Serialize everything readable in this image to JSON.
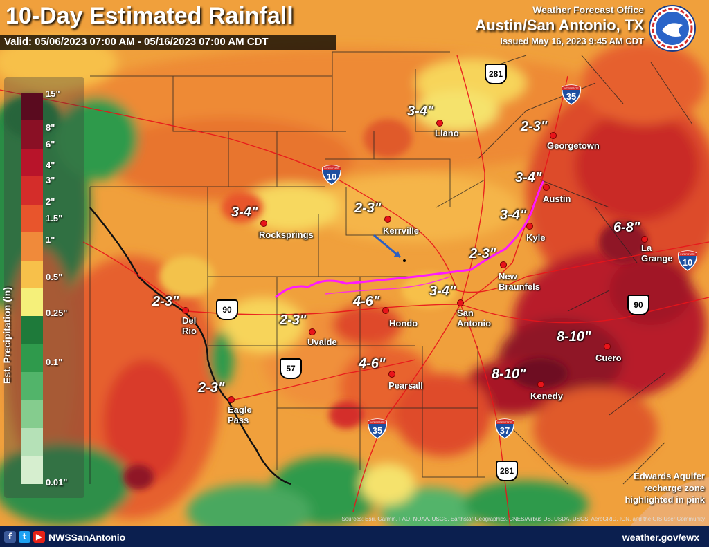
{
  "header": {
    "title": "10-Day Estimated Rainfall",
    "valid": "Valid: 05/06/2023 07:00 AM - 05/16/2023 07:00 AM CDT",
    "office_line1": "Weather Forecast Office",
    "office_line2": "Austin/San Antonio, TX",
    "issued": "Issued May 16, 2023 9:45 AM CDT",
    "logo_text": "NATIONAL WEATHER SERVICE"
  },
  "legend": {
    "title": "Est. Precipitation (in)",
    "labels": [
      "15\"",
      "8\"",
      "6\"",
      "4\"",
      "3\"",
      "2\"",
      "1.5\"",
      "1\"",
      "0.5\"",
      "0.25\"",
      "0.1\"",
      "0.01\""
    ],
    "colors": [
      "#5a0b1f",
      "#8a1025",
      "#b8142a",
      "#d42d2a",
      "#e8552c",
      "#f08a3a",
      "#f7c04a",
      "#f5f07a",
      "#1e7a3a",
      "#2f9a4c",
      "#52b46a",
      "#85cc8e",
      "#b5e1b7",
      "#d6eecf"
    ]
  },
  "rainfall_labels": [
    {
      "id": "llano",
      "text": "3-4\""
    },
    {
      "id": "georgetown",
      "text": "2-3\""
    },
    {
      "id": "austin",
      "text": "3-4\""
    },
    {
      "id": "kyle",
      "text": "3-4\""
    },
    {
      "id": "rocksprings",
      "text": "3-4\""
    },
    {
      "id": "kerrville",
      "text": "2-3\""
    },
    {
      "id": "lagrange",
      "text": "6-8\""
    },
    {
      "id": "newbraunfels",
      "text": "2-3\""
    },
    {
      "id": "sanantonio",
      "text": "3-4\""
    },
    {
      "id": "hondo",
      "text": "4-6\""
    },
    {
      "id": "delrio",
      "text": "2-3\""
    },
    {
      "id": "uvalde",
      "text": "2-3\""
    },
    {
      "id": "cuero",
      "text": "8-10\""
    },
    {
      "id": "kenedy",
      "text": "8-10\""
    },
    {
      "id": "pearsall",
      "text": "4-6\""
    },
    {
      "id": "eaglepass",
      "text": "2-3\""
    }
  ],
  "cities": {
    "llano": "Llano",
    "georgetown": "Georgetown",
    "austin": "Austin",
    "kyle": "Kyle",
    "rocksprings": "Rocksprings",
    "kerrville": "Kerrville",
    "lagrange": "La Grange",
    "newbraunfels": "New Braunfels",
    "sanantonio": "San Antonio",
    "hondo": "Hondo",
    "delrio": "Del Rio",
    "uvalde": "Uvalde",
    "cuero": "Cuero",
    "kenedy": "Kenedy",
    "pearsall": "Pearsall",
    "eaglepass": "Eagle Pass"
  },
  "highways": {
    "i10_west": "10",
    "i10_east": "10",
    "i35_north": "35",
    "i35_south": "35",
    "i37": "37",
    "us281_north": "281",
    "us281_south": "281",
    "us90_west": "90",
    "us90_east": "90",
    "us57": "57",
    "interstate_word": "INTERSTATE"
  },
  "aquifer_note": {
    "line1": "Edwards Aquifer",
    "line2": "recharge zone",
    "line3": "highlighted in pink"
  },
  "credit": "Sources: Esri, Garmin, FAO, NOAA, USGS, Earthstar Geographics, CNES/Airbus DS, USDA, USGS, AeroGRID, IGN, and the GIS User Community",
  "footer": {
    "social_icons": [
      "facebook-icon",
      "twitter-icon",
      "youtube-icon"
    ],
    "handle": "NWSSanAntonio",
    "url": "weather.gov/ewx"
  }
}
